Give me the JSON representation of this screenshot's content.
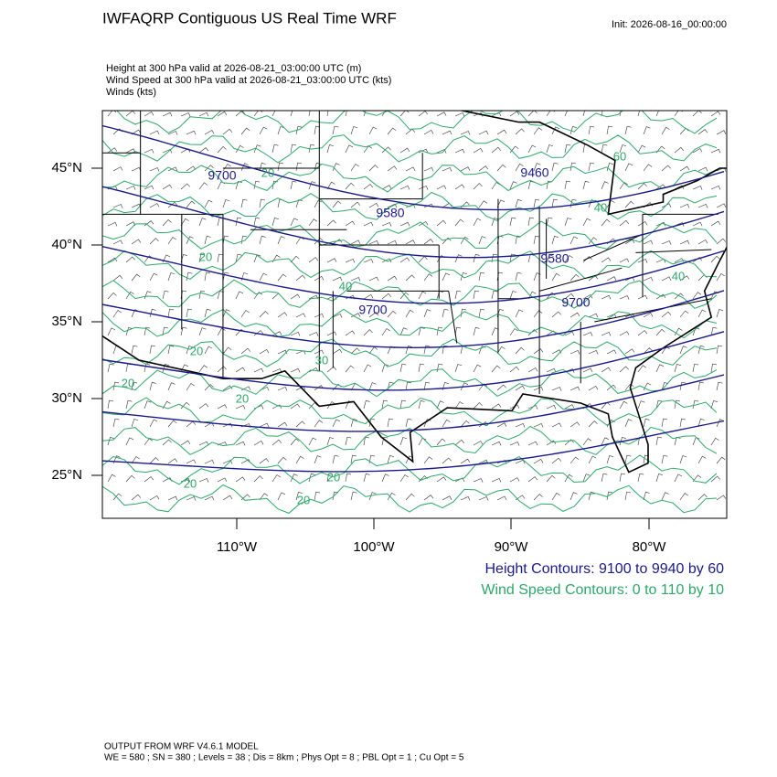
{
  "header": {
    "title": "IWFAQRP Contiguous US Real Time WRF",
    "init": "Init: 2026-08-16_00:00:00"
  },
  "fields": [
    "Height at 300 hPa valid at 2026-08-21_03:00:00 UTC   (m)",
    "Wind Speed at 300 hPa valid at 2026-08-21_03:00:00 UTC   (kts)",
    "Winds   (kts)"
  ],
  "map": {
    "lat_labels": [
      "45°N",
      "40°N",
      "35°N",
      "30°N",
      "25°N"
    ],
    "lon_labels": [
      "110°W",
      "100°W",
      "90°W",
      "80°W"
    ],
    "height_labels": [
      "9700",
      "9580",
      "9460",
      "9580",
      "9700",
      "9700"
    ],
    "wind_labels": [
      "60",
      "40",
      "20",
      "20",
      "40",
      "30",
      "20",
      "20",
      "20",
      "20",
      "20",
      "20",
      "40"
    ]
  },
  "legend": {
    "height": "Height Contours: 9100 to 9940 by 60",
    "wind": "Wind Speed Contours: 0 to 110 by 10"
  },
  "footer": {
    "model": "OUTPUT FROM WRF V4.6.1 MODEL",
    "settings": "WE = 580 ; SN = 380 ; Levels = 38 ; Dis = 8km ; Phys Opt = 8 ; PBL Opt = 1 ; Cu Opt = 5"
  }
}
